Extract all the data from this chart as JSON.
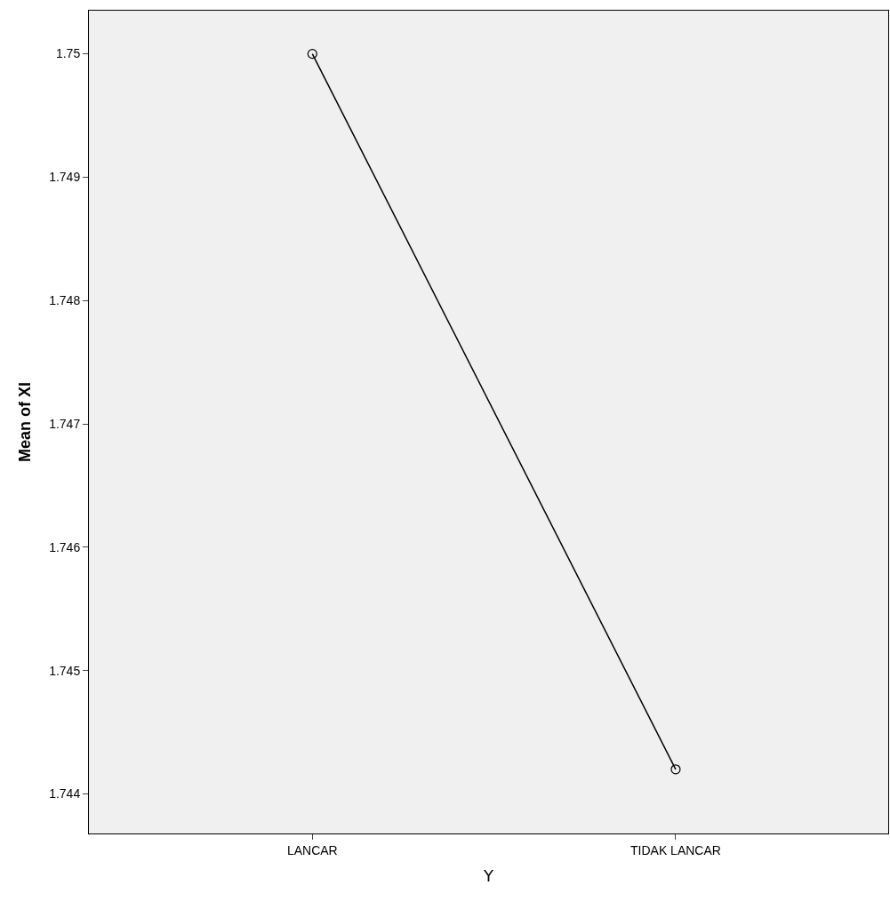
{
  "chart_data": {
    "type": "line",
    "xlabel": "Y",
    "ylabel": "Mean of XI",
    "categories": [
      "LANCAR",
      "TIDAK LANCAR"
    ],
    "series": [
      {
        "color": "#000000",
        "values": [
          1.75,
          1.7442
        ]
      }
    ],
    "ylim": [
      1.74368,
      1.75035
    ],
    "yticks": [
      1.744,
      1.745,
      1.746,
      1.747,
      1.748,
      1.749,
      1.75
    ],
    "marker": "circle",
    "line_style": "solid"
  }
}
